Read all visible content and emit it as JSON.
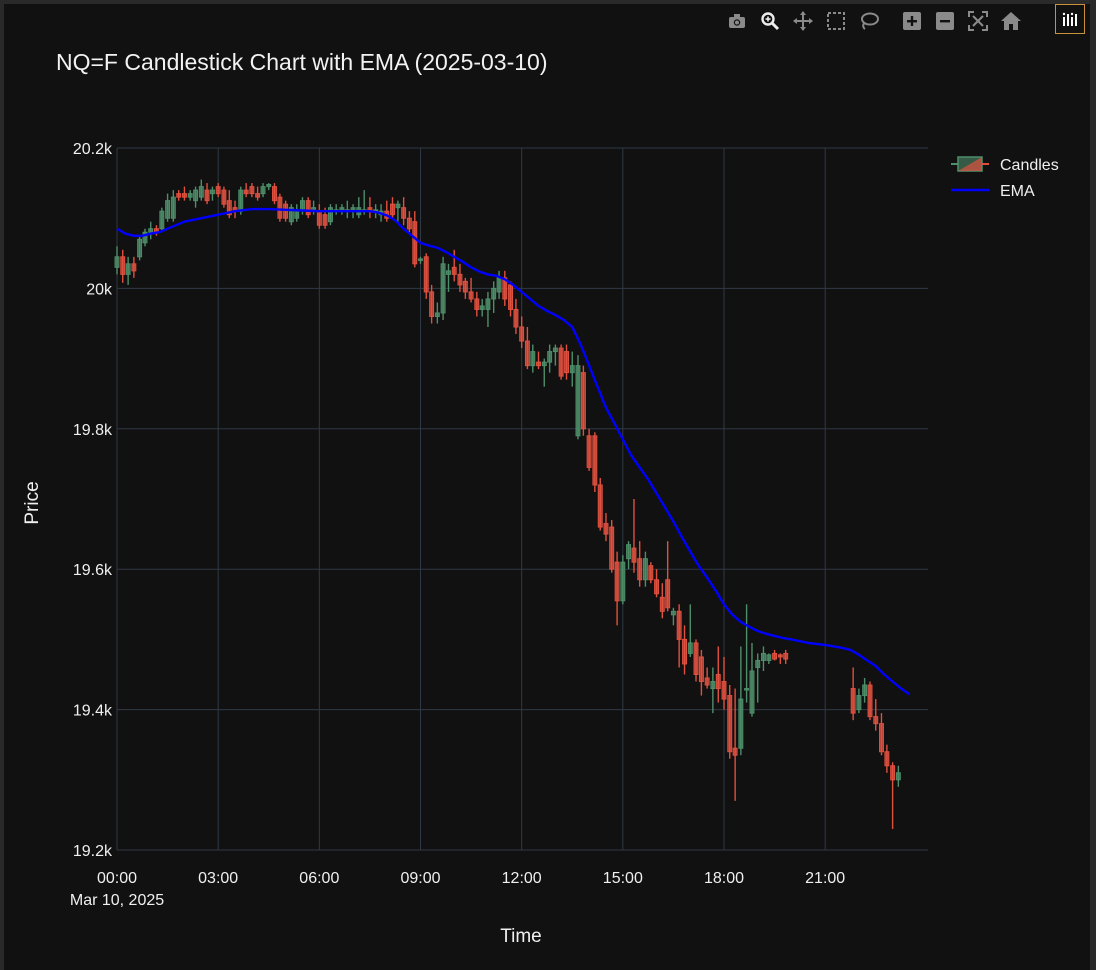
{
  "title": "NQ=F Candlestick Chart with EMA (2025-03-10)",
  "modebar": {
    "buttons": [
      {
        "icon": "camera-icon"
      },
      {
        "icon": "zoom-icon"
      },
      {
        "icon": "pan-icon"
      },
      {
        "icon": "box-select-icon"
      },
      {
        "icon": "lasso-icon"
      },
      {
        "icon": "zoom-in-icon"
      },
      {
        "icon": "zoom-out-icon"
      },
      {
        "icon": "autoscale-icon"
      },
      {
        "icon": "home-icon"
      }
    ],
    "logo": "plotly-logo-icon"
  },
  "colors": {
    "background": "#111111",
    "grid": "#2f3946",
    "increasing": "#4e8e6a",
    "decreasing": "#e0503f",
    "ema": "#0000ff",
    "logo_border": "#c8913a"
  },
  "chart_data": {
    "type": "candlestick",
    "title": "NQ=F Candlestick Chart with EMA (2025-03-10)",
    "xlabel": "Time",
    "ylabel": "Price",
    "x_tick_labels": [
      "00:00",
      "03:00",
      "06:00",
      "09:00",
      "12:00",
      "15:00",
      "18:00",
      "21:00"
    ],
    "x_tick_hours": [
      0,
      3,
      6,
      9,
      12,
      15,
      18,
      21
    ],
    "x_date_label": "Mar 10, 2025",
    "y_tick_labels": [
      "19.2k",
      "19.4k",
      "19.6k",
      "19.8k",
      "20k",
      "20.2k"
    ],
    "y_tick_values": [
      19200,
      19400,
      19600,
      19800,
      20000,
      20200
    ],
    "xlim_hours": [
      0,
      23.9
    ],
    "ylim": [
      19200,
      20200
    ],
    "legend": {
      "position": "top-right",
      "entries": [
        "Candles",
        "EMA"
      ]
    },
    "candle_interval_minutes": 10,
    "candles": [
      [
        0.0,
        20030,
        20060,
        20020,
        20045
      ],
      [
        0.17,
        20045,
        20055,
        20008,
        20020
      ],
      [
        0.33,
        20020,
        20045,
        20005,
        20035
      ],
      [
        0.5,
        20035,
        20045,
        20015,
        20025
      ],
      [
        0.67,
        20045,
        20075,
        20040,
        20070
      ],
      [
        0.83,
        20065,
        20085,
        20060,
        20080
      ],
      [
        1.0,
        20080,
        20095,
        20070,
        20085
      ],
      [
        1.17,
        20085,
        20090,
        20075,
        20080
      ],
      [
        1.33,
        20085,
        20115,
        20080,
        20110
      ],
      [
        1.5,
        20100,
        20135,
        20095,
        20125
      ],
      [
        1.67,
        20100,
        20140,
        20095,
        20130
      ],
      [
        1.83,
        20135,
        20140,
        20125,
        20130
      ],
      [
        2.0,
        20135,
        20145,
        20125,
        20130
      ],
      [
        2.17,
        20130,
        20140,
        20125,
        20135
      ],
      [
        2.33,
        20125,
        20145,
        20115,
        20140
      ],
      [
        2.5,
        20130,
        20155,
        20125,
        20145
      ],
      [
        2.67,
        20140,
        20150,
        20120,
        20125
      ],
      [
        2.83,
        20135,
        20145,
        20125,
        20140
      ],
      [
        3.0,
        20145,
        20150,
        20130,
        20135
      ],
      [
        3.17,
        20140,
        20145,
        20115,
        20120
      ],
      [
        3.33,
        20125,
        20140,
        20100,
        20105
      ],
      [
        3.5,
        20115,
        20125,
        20100,
        20110
      ],
      [
        3.67,
        20110,
        20145,
        20105,
        20140
      ],
      [
        3.83,
        20140,
        20150,
        20130,
        20135
      ],
      [
        4.0,
        20145,
        20150,
        20130,
        20135
      ],
      [
        4.17,
        20135,
        20145,
        20125,
        20130
      ],
      [
        4.33,
        20135,
        20150,
        20130,
        20145
      ],
      [
        4.5,
        20145,
        20150,
        20140,
        20148
      ],
      [
        4.67,
        20145,
        20150,
        20120,
        20125
      ],
      [
        4.83,
        20130,
        20135,
        20095,
        20100
      ],
      [
        5.0,
        20120,
        20125,
        20095,
        20100
      ],
      [
        5.17,
        20095,
        20120,
        20090,
        20115
      ],
      [
        5.33,
        20100,
        20120,
        20095,
        20112
      ],
      [
        5.5,
        20112,
        20130,
        20105,
        20125
      ],
      [
        5.67,
        20125,
        20130,
        20100,
        20105
      ],
      [
        5.83,
        20110,
        20125,
        20105,
        20115
      ],
      [
        6.0,
        20110,
        20120,
        20085,
        20090
      ],
      [
        6.17,
        20105,
        20115,
        20085,
        20090
      ],
      [
        6.33,
        20095,
        20120,
        20090,
        20115
      ],
      [
        6.5,
        20110,
        20120,
        20105,
        20112
      ],
      [
        6.67,
        20110,
        20120,
        20105,
        20115
      ],
      [
        6.83,
        20110,
        20125,
        20100,
        20112
      ],
      [
        7.0,
        20110,
        20120,
        20100,
        20115
      ],
      [
        7.17,
        20105,
        20130,
        20100,
        20115
      ],
      [
        7.33,
        20110,
        20140,
        20105,
        20112
      ],
      [
        7.5,
        20115,
        20130,
        20100,
        20110
      ],
      [
        7.67,
        20110,
        20120,
        20100,
        20112
      ],
      [
        7.83,
        20105,
        20120,
        20095,
        20110
      ],
      [
        8.0,
        20110,
        20125,
        20095,
        20100
      ],
      [
        8.17,
        20120,
        20130,
        20100,
        20105
      ],
      [
        8.33,
        20115,
        20125,
        20095,
        20120
      ],
      [
        8.5,
        20115,
        20130,
        20090,
        20100
      ],
      [
        8.67,
        20100,
        20110,
        20080,
        20085
      ],
      [
        8.83,
        20095,
        20110,
        20030,
        20035
      ],
      [
        9.0,
        20040,
        20045,
        20035,
        20042
      ],
      [
        9.17,
        20045,
        20050,
        19985,
        19995
      ],
      [
        9.33,
        19995,
        20005,
        19950,
        19960
      ],
      [
        9.5,
        19960,
        19980,
        19950,
        19965
      ],
      [
        9.67,
        19965,
        20045,
        19955,
        20035
      ],
      [
        9.83,
        20020,
        20035,
        19995,
        20025
      ],
      [
        10.0,
        20030,
        20055,
        20010,
        20020
      ],
      [
        10.17,
        20020,
        20035,
        19995,
        20005
      ],
      [
        10.33,
        20010,
        20015,
        19985,
        19995
      ],
      [
        10.5,
        19995,
        20015,
        19980,
        19985
      ],
      [
        10.67,
        19985,
        19995,
        19960,
        19970
      ],
      [
        10.83,
        19970,
        19985,
        19960,
        19975
      ],
      [
        11.0,
        19970,
        19995,
        19945,
        19985
      ],
      [
        11.17,
        19985,
        20010,
        19965,
        20000
      ],
      [
        11.33,
        19995,
        20025,
        19985,
        20015
      ],
      [
        11.5,
        20015,
        20025,
        19975,
        19985
      ],
      [
        11.67,
        20005,
        20010,
        19960,
        19970
      ],
      [
        11.83,
        19970,
        19985,
        19935,
        19945
      ],
      [
        12.0,
        19945,
        19960,
        19915,
        19925
      ],
      [
        12.17,
        19925,
        19945,
        19885,
        19890
      ],
      [
        12.33,
        19890,
        19920,
        19880,
        19910
      ],
      [
        12.5,
        19895,
        19910,
        19885,
        19890
      ],
      [
        12.67,
        19890,
        19900,
        19860,
        19895
      ],
      [
        12.83,
        19895,
        19920,
        19880,
        19910
      ],
      [
        13.0,
        19910,
        19920,
        19890,
        19915
      ],
      [
        13.17,
        19915,
        19920,
        19870,
        19875
      ],
      [
        13.33,
        19910,
        19920,
        19870,
        19880
      ],
      [
        13.5,
        19880,
        19910,
        19860,
        19890
      ],
      [
        13.67,
        19790,
        19905,
        19785,
        19890
      ],
      [
        13.83,
        19880,
        19890,
        19790,
        19800
      ],
      [
        14.0,
        19790,
        19800,
        19740,
        19745
      ],
      [
        14.17,
        19790,
        19795,
        19710,
        19720
      ],
      [
        14.33,
        19720,
        19730,
        19655,
        19660
      ],
      [
        14.5,
        19665,
        19680,
        19640,
        19650
      ],
      [
        14.67,
        19660,
        19670,
        19595,
        19600
      ],
      [
        14.83,
        19610,
        19625,
        19520,
        19555
      ],
      [
        15.0,
        19555,
        19620,
        19550,
        19610
      ],
      [
        15.17,
        19615,
        19640,
        19600,
        19635
      ],
      [
        15.33,
        19630,
        19700,
        19595,
        19610
      ],
      [
        15.5,
        19615,
        19640,
        19575,
        19585
      ],
      [
        15.67,
        19585,
        19625,
        19575,
        19615
      ],
      [
        15.83,
        19605,
        19610,
        19580,
        19585
      ],
      [
        16.0,
        19585,
        19600,
        19560,
        19565
      ],
      [
        16.17,
        19560,
        19580,
        19530,
        19540
      ],
      [
        16.33,
        19585,
        19640,
        19540,
        19545
      ],
      [
        16.5,
        19535,
        19545,
        19520,
        19540
      ],
      [
        16.67,
        19540,
        19550,
        19460,
        19500
      ],
      [
        16.83,
        19500,
        19520,
        19450,
        19465
      ],
      [
        17.0,
        19480,
        19550,
        19475,
        19495
      ],
      [
        17.17,
        19495,
        19500,
        19440,
        19450
      ],
      [
        17.33,
        19475,
        19485,
        19420,
        19440
      ],
      [
        17.5,
        19445,
        19460,
        19430,
        19435
      ],
      [
        17.67,
        19430,
        19460,
        19395,
        19440
      ],
      [
        17.83,
        19450,
        19490,
        19410,
        19430
      ],
      [
        18.0,
        19440,
        19475,
        19400,
        19415
      ],
      [
        18.17,
        19420,
        19435,
        19330,
        19340
      ],
      [
        18.33,
        19345,
        19430,
        19270,
        19335
      ],
      [
        18.5,
        19345,
        19490,
        19335,
        19415
      ],
      [
        18.67,
        19430,
        19550,
        19410,
        19430
      ],
      [
        18.83,
        19395,
        19495,
        19390,
        19455
      ],
      [
        19.0,
        19460,
        19480,
        19410,
        19470
      ],
      [
        19.17,
        19470,
        19490,
        19455,
        19480
      ],
      [
        19.33,
        19470,
        19480,
        19465,
        19478
      ],
      [
        19.5,
        19480,
        19485,
        19470,
        19472
      ],
      [
        19.67,
        19478,
        19480,
        19465,
        19475
      ],
      [
        19.83,
        19480,
        19485,
        19465,
        19472
      ],
      [
        21.83,
        19430,
        19460,
        19385,
        19395
      ],
      [
        22.0,
        19400,
        19430,
        19395,
        19420
      ],
      [
        22.17,
        19420,
        19445,
        19410,
        19435
      ],
      [
        22.33,
        19435,
        19440,
        19385,
        19390
      ],
      [
        22.5,
        19390,
        19415,
        19370,
        19380
      ],
      [
        22.67,
        19380,
        19395,
        19335,
        19340
      ],
      [
        22.83,
        19340,
        19350,
        19310,
        19320
      ],
      [
        23.0,
        19320,
        19325,
        19230,
        19300
      ],
      [
        23.17,
        19300,
        19320,
        19290,
        19310
      ]
    ],
    "ema": [
      [
        0.0,
        20085
      ],
      [
        0.25,
        20078
      ],
      [
        0.5,
        20075
      ],
      [
        0.75,
        20075
      ],
      [
        1.0,
        20078
      ],
      [
        1.25,
        20080
      ],
      [
        1.5,
        20085
      ],
      [
        1.75,
        20090
      ],
      [
        2.0,
        20095
      ],
      [
        2.5,
        20100
      ],
      [
        3.0,
        20105
      ],
      [
        3.5,
        20110
      ],
      [
        4.0,
        20113
      ],
      [
        4.5,
        20113
      ],
      [
        5.0,
        20112
      ],
      [
        5.5,
        20111
      ],
      [
        6.0,
        20110
      ],
      [
        6.5,
        20110
      ],
      [
        7.0,
        20110
      ],
      [
        7.5,
        20110
      ],
      [
        7.75,
        20108
      ],
      [
        8.0,
        20104
      ],
      [
        8.25,
        20097
      ],
      [
        8.5,
        20085
      ],
      [
        8.75,
        20075
      ],
      [
        9.0,
        20065
      ],
      [
        9.25,
        20061
      ],
      [
        9.5,
        20058
      ],
      [
        9.75,
        20052
      ],
      [
        10.0,
        20045
      ],
      [
        10.25,
        20038
      ],
      [
        10.5,
        20030
      ],
      [
        10.75,
        20024
      ],
      [
        11.0,
        20020
      ],
      [
        11.25,
        20018
      ],
      [
        11.5,
        20013
      ],
      [
        11.75,
        20005
      ],
      [
        12.0,
        19995
      ],
      [
        12.25,
        19985
      ],
      [
        12.5,
        19975
      ],
      [
        12.75,
        19968
      ],
      [
        13.0,
        19962
      ],
      [
        13.25,
        19955
      ],
      [
        13.5,
        19945
      ],
      [
        13.75,
        19920
      ],
      [
        14.0,
        19890
      ],
      [
        14.25,
        19860
      ],
      [
        14.5,
        19830
      ],
      [
        14.75,
        19808
      ],
      [
        15.0,
        19785
      ],
      [
        15.25,
        19762
      ],
      [
        15.5,
        19745
      ],
      [
        15.75,
        19728
      ],
      [
        16.0,
        19708
      ],
      [
        16.25,
        19688
      ],
      [
        16.5,
        19668
      ],
      [
        16.75,
        19646
      ],
      [
        17.0,
        19625
      ],
      [
        17.25,
        19605
      ],
      [
        17.5,
        19588
      ],
      [
        17.75,
        19570
      ],
      [
        18.0,
        19550
      ],
      [
        18.25,
        19535
      ],
      [
        18.5,
        19525
      ],
      [
        18.75,
        19518
      ],
      [
        19.0,
        19512
      ],
      [
        19.25,
        19508
      ],
      [
        19.5,
        19505
      ],
      [
        19.75,
        19502
      ],
      [
        20.0,
        19500
      ],
      [
        20.5,
        19495
      ],
      [
        21.0,
        19492
      ],
      [
        21.5,
        19488
      ],
      [
        21.75,
        19485
      ],
      [
        22.0,
        19478
      ],
      [
        22.25,
        19470
      ],
      [
        22.5,
        19462
      ],
      [
        22.75,
        19450
      ],
      [
        23.0,
        19440
      ],
      [
        23.25,
        19430
      ],
      [
        23.5,
        19422
      ]
    ]
  }
}
